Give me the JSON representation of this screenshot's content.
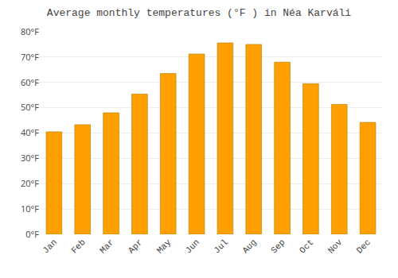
{
  "chart_data": {
    "type": "bar",
    "title": "Average monthly temperatures (°F ) in Néa Karváli",
    "categories": [
      "Jan",
      "Feb",
      "Mar",
      "Apr",
      "May",
      "Jun",
      "Jul",
      "Aug",
      "Sep",
      "Oct",
      "Nov",
      "Dec"
    ],
    "values": [
      40.5,
      43.3,
      48.0,
      55.4,
      63.5,
      71.2,
      75.6,
      75.0,
      68.0,
      59.5,
      51.3,
      44.2
    ],
    "color": "#FFA000",
    "ylim": [
      0,
      80
    ],
    "yticks": [
      {
        "value": 0,
        "label": "0°F"
      },
      {
        "value": 10,
        "label": "10°F"
      },
      {
        "value": 20,
        "label": "20°F"
      },
      {
        "value": 30,
        "label": "30°F"
      },
      {
        "value": 40,
        "label": "40°F"
      },
      {
        "value": 50,
        "label": "50°F"
      },
      {
        "value": 60,
        "label": "60°F"
      },
      {
        "value": 70,
        "label": "70°F"
      },
      {
        "value": 80,
        "label": "80°F"
      }
    ],
    "grid": true
  }
}
